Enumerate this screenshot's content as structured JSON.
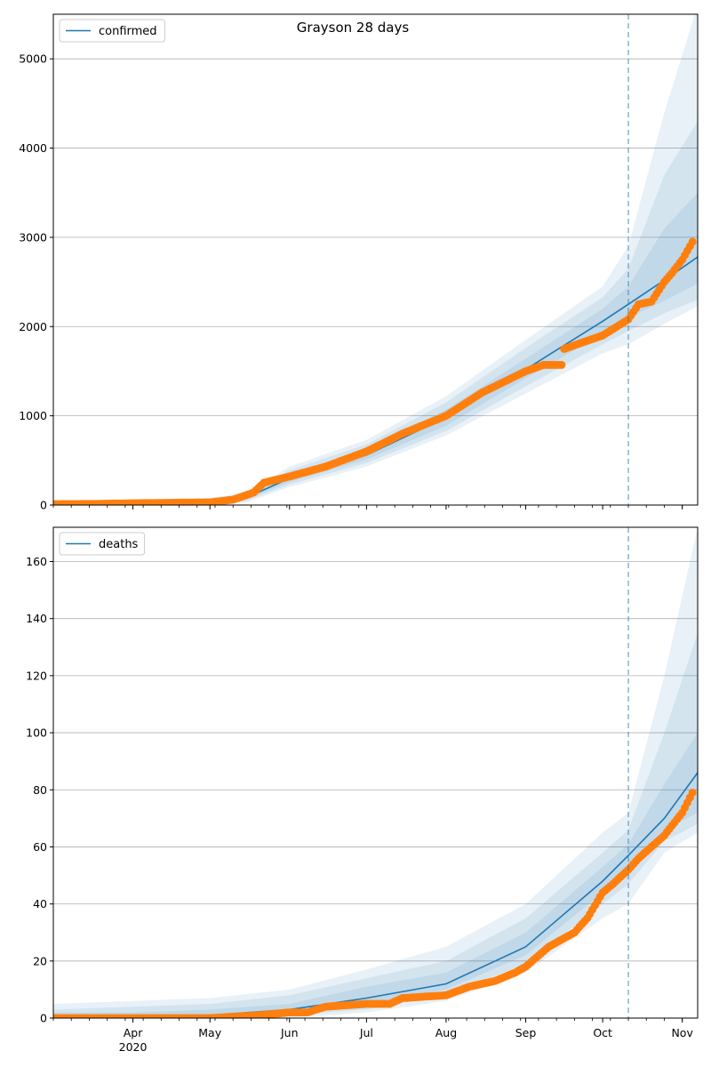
{
  "chart_data": [
    {
      "type": "line",
      "title": "Grayson 28 days",
      "legend": {
        "label": "confirmed",
        "placement": "top-left"
      },
      "grid": "y",
      "x_range": [
        "2020-03-01",
        "2020-11-07"
      ],
      "ylim": [
        0,
        5500
      ],
      "y_ticks": [
        0,
        1000,
        2000,
        3000,
        4000,
        5000
      ],
      "forecast_start": "2020-10-11",
      "model": {
        "x": [
          "2020-03-01",
          "2020-04-01",
          "2020-05-01",
          "2020-05-15",
          "2020-06-01",
          "2020-07-01",
          "2020-08-01",
          "2020-09-01",
          "2020-10-01",
          "2020-10-11",
          "2020-10-25",
          "2020-11-07"
        ],
        "y": [
          5,
          8,
          20,
          80,
          300,
          560,
          980,
          1520,
          2060,
          2250,
          2520,
          2780
        ]
      },
      "bands": [
        {
          "lower": [
            0,
            0,
            0,
            30,
            200,
            430,
            780,
            1250,
            1700,
            1800,
            2030,
            2230
          ],
          "upper": [
            40,
            60,
            80,
            140,
            430,
            730,
            1220,
            1850,
            2450,
            2900,
            4400,
            5600
          ]
        },
        {
          "lower": [
            0,
            0,
            5,
            45,
            230,
            470,
            830,
            1330,
            1800,
            1950,
            2150,
            2300
          ],
          "upper": [
            25,
            40,
            55,
            120,
            390,
            680,
            1150,
            1760,
            2330,
            2650,
            3700,
            4300
          ]
        },
        {
          "lower": [
            0,
            2,
            10,
            60,
            260,
            510,
            890,
            1420,
            1920,
            2100,
            2290,
            2480
          ],
          "upper": [
            15,
            20,
            40,
            100,
            350,
            620,
            1070,
            1640,
            2200,
            2450,
            3100,
            3500
          ]
        }
      ],
      "observed": {
        "x": [
          "2020-03-01",
          "2020-03-15",
          "2020-04-01",
          "2020-04-15",
          "2020-05-01",
          "2020-05-10",
          "2020-05-18",
          "2020-05-22",
          "2020-06-01",
          "2020-06-15",
          "2020-07-01",
          "2020-07-15",
          "2020-08-01",
          "2020-08-15",
          "2020-09-01",
          "2020-09-08",
          "2020-09-15",
          "2020-09-16",
          "2020-10-01",
          "2020-10-11",
          "2020-10-15",
          "2020-10-20",
          "2020-10-25",
          "2020-10-28",
          "2020-11-01",
          "2020-11-05"
        ],
        "y": [
          10,
          12,
          20,
          25,
          30,
          60,
          140,
          250,
          320,
          430,
          600,
          800,
          1000,
          1260,
          1500,
          1570,
          1570,
          1750,
          1900,
          2080,
          2250,
          2280,
          2500,
          2600,
          2750,
          2950
        ]
      }
    },
    {
      "type": "line",
      "legend": {
        "label": "deaths",
        "placement": "top-left"
      },
      "grid": "y",
      "x_range": [
        "2020-03-01",
        "2020-11-07"
      ],
      "x_ticks": [
        "Apr",
        "May",
        "Jun",
        "Jul",
        "Aug",
        "Sep",
        "Oct",
        "Nov"
      ],
      "x_year_label": "2020",
      "ylim": [
        0,
        172
      ],
      "y_ticks": [
        0,
        20,
        40,
        60,
        80,
        100,
        120,
        140,
        160
      ],
      "forecast_start": "2020-10-11",
      "model": {
        "x": [
          "2020-03-01",
          "2020-04-01",
          "2020-05-01",
          "2020-06-01",
          "2020-07-01",
          "2020-08-01",
          "2020-09-01",
          "2020-10-01",
          "2020-10-11",
          "2020-10-25",
          "2020-11-07"
        ],
        "y": [
          0,
          0.5,
          1,
          3,
          7,
          12,
          25,
          48,
          57,
          70,
          86
        ]
      },
      "bands": [
        {
          "lower": [
            0,
            0,
            0,
            0,
            2,
            6,
            16,
            35,
            40,
            58,
            65
          ],
          "upper": [
            5,
            6,
            7,
            10,
            17,
            25,
            40,
            65,
            72,
            120,
            172
          ]
        },
        {
          "lower": [
            0,
            0,
            0,
            1,
            3,
            8,
            19,
            40,
            47,
            62,
            68
          ],
          "upper": [
            3,
            4,
            5,
            8,
            14,
            20,
            35,
            58,
            66,
            100,
            135
          ]
        },
        {
          "lower": [
            0,
            0,
            0,
            2,
            5,
            10,
            22,
            44,
            52,
            66,
            72
          ],
          "upper": [
            2,
            2,
            3,
            5,
            11,
            16,
            30,
            53,
            61,
            82,
            100
          ]
        }
      ],
      "observed": {
        "x": [
          "2020-03-01",
          "2020-04-01",
          "2020-05-01",
          "2020-05-20",
          "2020-06-01",
          "2020-06-08",
          "2020-06-15",
          "2020-07-01",
          "2020-07-10",
          "2020-07-15",
          "2020-08-01",
          "2020-08-10",
          "2020-08-20",
          "2020-08-28",
          "2020-09-01",
          "2020-09-10",
          "2020-09-20",
          "2020-09-25",
          "2020-10-01",
          "2020-10-05",
          "2020-10-11",
          "2020-10-15",
          "2020-10-20",
          "2020-10-25",
          "2020-11-01",
          "2020-11-05"
        ],
        "y": [
          0,
          0,
          0,
          1,
          2,
          2,
          4,
          5,
          5,
          7,
          8,
          11,
          13,
          16,
          18,
          25,
          30,
          35,
          44,
          47,
          52,
          56,
          60,
          64,
          72,
          79
        ]
      }
    }
  ]
}
